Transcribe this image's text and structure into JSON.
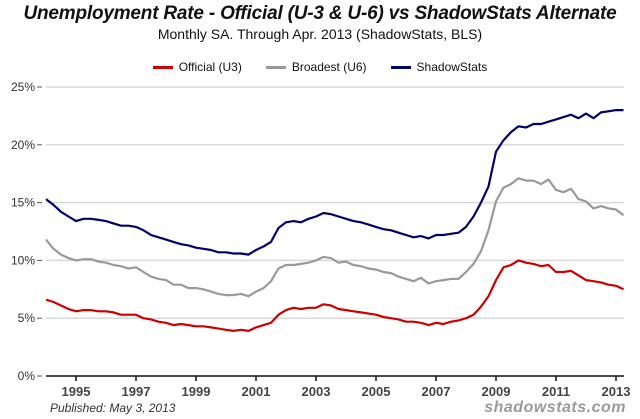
{
  "chart_data": {
    "type": "line",
    "title": "Unemployment Rate - Official (U-3 & U-6) vs ShadowStats Alternate",
    "subtitle": "Monthly SA. Through Apr. 2013  (ShadowStats, BLS)",
    "xlabel": "",
    "ylabel": "",
    "xlim": [
      1994.0,
      2013.33
    ],
    "ylim": [
      0,
      25
    ],
    "grid": true,
    "legend_position": "top-center",
    "y_ticks": [
      0,
      5,
      10,
      15,
      20,
      25
    ],
    "y_tick_labels": [
      "0%",
      "5%",
      "10%",
      "15%",
      "20%",
      "25%"
    ],
    "x_ticks": [
      1995,
      1997,
      1999,
      2001,
      2003,
      2005,
      2007,
      2009,
      2011,
      2013
    ],
    "x_tick_labels": [
      "1995",
      "1997",
      "1999",
      "2001",
      "2003",
      "2005",
      "2007",
      "2009",
      "2011",
      "2013"
    ],
    "x": [
      1994.0,
      1994.25,
      1994.5,
      1994.75,
      1995.0,
      1995.25,
      1995.5,
      1995.75,
      1996.0,
      1996.25,
      1996.5,
      1996.75,
      1997.0,
      1997.25,
      1997.5,
      1997.75,
      1998.0,
      1998.25,
      1998.5,
      1998.75,
      1999.0,
      1999.25,
      1999.5,
      1999.75,
      2000.0,
      2000.25,
      2000.5,
      2000.75,
      2001.0,
      2001.25,
      2001.5,
      2001.75,
      2002.0,
      2002.25,
      2002.5,
      2002.75,
      2003.0,
      2003.25,
      2003.5,
      2003.75,
      2004.0,
      2004.25,
      2004.5,
      2004.75,
      2005.0,
      2005.25,
      2005.5,
      2005.75,
      2006.0,
      2006.25,
      2006.5,
      2006.75,
      2007.0,
      2007.25,
      2007.5,
      2007.75,
      2008.0,
      2008.25,
      2008.5,
      2008.75,
      2009.0,
      2009.25,
      2009.5,
      2009.75,
      2010.0,
      2010.25,
      2010.5,
      2010.75,
      2011.0,
      2011.25,
      2011.5,
      2011.75,
      2012.0,
      2012.25,
      2012.5,
      2012.75,
      2013.0,
      2013.25
    ],
    "series": [
      {
        "name": "Official (U3)",
        "color": "#cc0000",
        "values": [
          6.6,
          6.4,
          6.1,
          5.8,
          5.6,
          5.7,
          5.7,
          5.6,
          5.6,
          5.5,
          5.3,
          5.3,
          5.3,
          5.0,
          4.9,
          4.7,
          4.6,
          4.4,
          4.5,
          4.4,
          4.3,
          4.3,
          4.2,
          4.1,
          4.0,
          3.9,
          4.0,
          3.9,
          4.2,
          4.4,
          4.6,
          5.3,
          5.7,
          5.9,
          5.8,
          5.9,
          5.9,
          6.2,
          6.1,
          5.8,
          5.7,
          5.6,
          5.5,
          5.4,
          5.3,
          5.1,
          5.0,
          4.9,
          4.7,
          4.7,
          4.6,
          4.4,
          4.6,
          4.5,
          4.7,
          4.8,
          5.0,
          5.3,
          6.0,
          6.9,
          8.3,
          9.4,
          9.6,
          10.0,
          9.8,
          9.7,
          9.5,
          9.6,
          9.0,
          9.0,
          9.1,
          8.7,
          8.3,
          8.2,
          8.1,
          7.9,
          7.8,
          7.5
        ]
      },
      {
        "name": "Broadest (U6)",
        "color": "#999999",
        "values": [
          11.8,
          11.0,
          10.5,
          10.2,
          10.0,
          10.1,
          10.1,
          9.9,
          9.8,
          9.6,
          9.5,
          9.3,
          9.4,
          9.0,
          8.6,
          8.4,
          8.3,
          7.9,
          7.9,
          7.6,
          7.6,
          7.5,
          7.3,
          7.1,
          7.0,
          7.0,
          7.1,
          6.9,
          7.3,
          7.6,
          8.2,
          9.3,
          9.6,
          9.6,
          9.7,
          9.8,
          10.0,
          10.3,
          10.2,
          9.8,
          9.9,
          9.6,
          9.5,
          9.3,
          9.2,
          9.0,
          8.9,
          8.6,
          8.4,
          8.2,
          8.5,
          8.0,
          8.2,
          8.3,
          8.4,
          8.4,
          9.0,
          9.7,
          10.8,
          12.6,
          15.1,
          16.3,
          16.6,
          17.1,
          16.9,
          16.9,
          16.6,
          17.0,
          16.1,
          15.9,
          16.2,
          15.3,
          15.1,
          14.5,
          14.7,
          14.5,
          14.4,
          13.9
        ]
      },
      {
        "name": "ShadowStats",
        "color": "#000066",
        "values": [
          15.3,
          14.8,
          14.2,
          13.8,
          13.4,
          13.6,
          13.6,
          13.5,
          13.4,
          13.2,
          13.0,
          13.0,
          12.9,
          12.6,
          12.2,
          12.0,
          11.8,
          11.6,
          11.4,
          11.3,
          11.1,
          11.0,
          10.9,
          10.7,
          10.7,
          10.6,
          10.6,
          10.5,
          10.9,
          11.2,
          11.6,
          12.8,
          13.3,
          13.4,
          13.3,
          13.6,
          13.8,
          14.1,
          14.0,
          13.8,
          13.6,
          13.4,
          13.3,
          13.1,
          12.9,
          12.7,
          12.6,
          12.4,
          12.2,
          12.0,
          12.1,
          11.9,
          12.2,
          12.2,
          12.3,
          12.4,
          12.9,
          13.8,
          15.0,
          16.4,
          19.4,
          20.4,
          21.1,
          21.6,
          21.5,
          21.8,
          21.8,
          22.0,
          22.2,
          22.4,
          22.6,
          22.3,
          22.7,
          22.3,
          22.8,
          22.9,
          23.0,
          23.0
        ]
      }
    ]
  },
  "footer": {
    "published": "Published: May 3, 2013",
    "watermark": "shadowstats.com"
  }
}
